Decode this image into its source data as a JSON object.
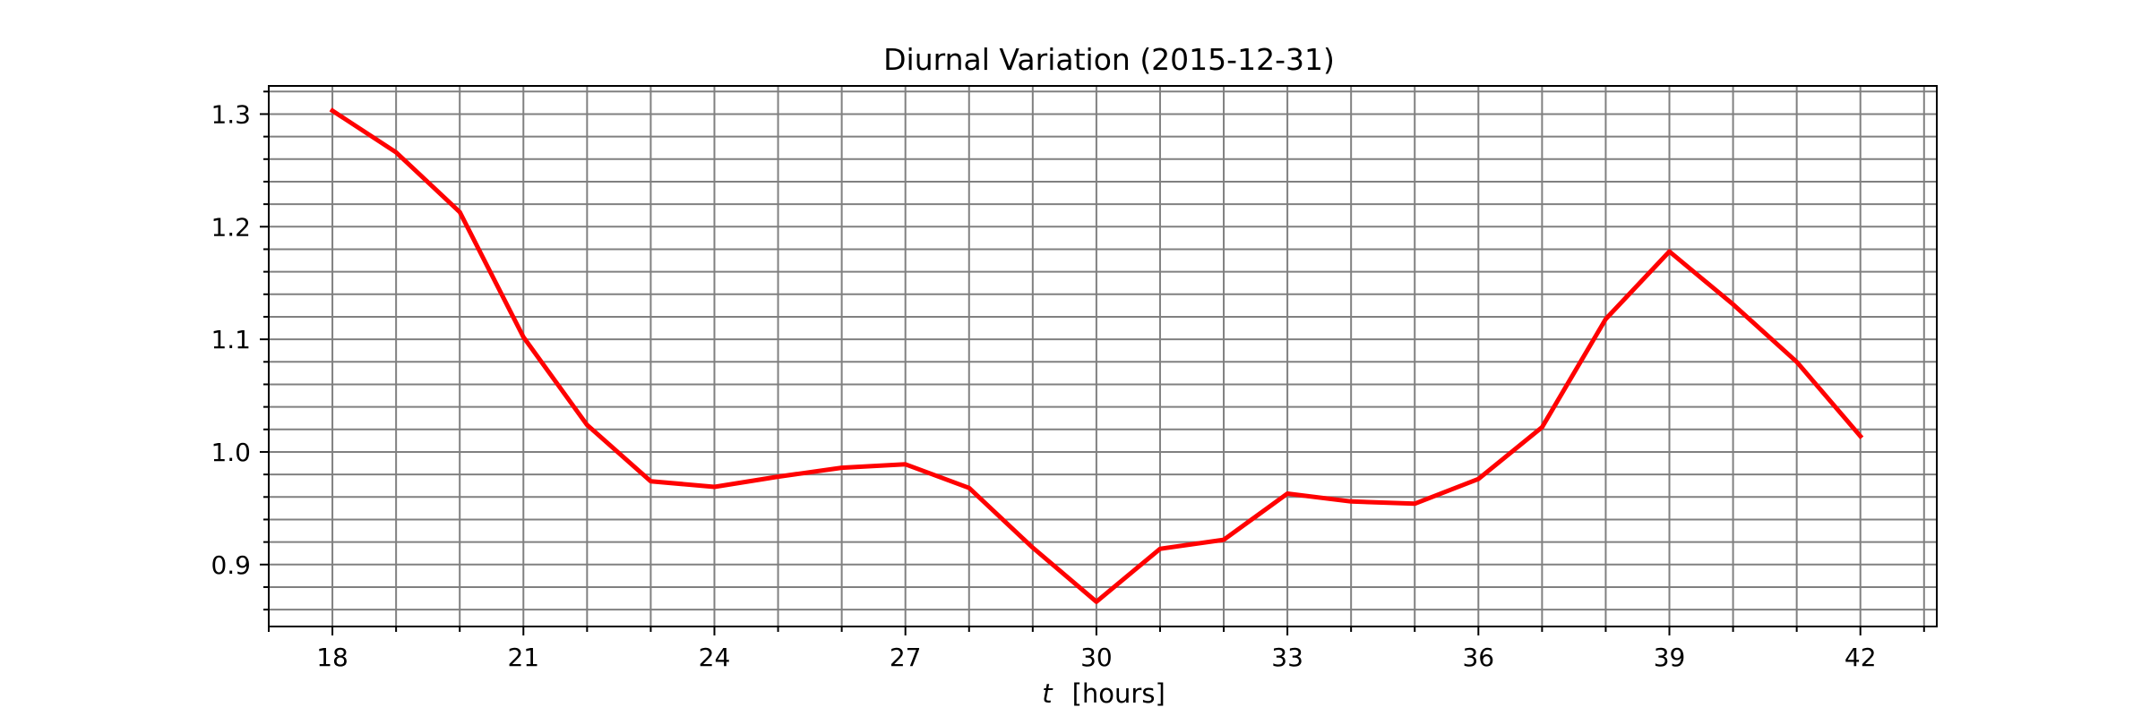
{
  "chart_data": {
    "type": "line",
    "title": "Diurnal Variation (2015-12-31)",
    "xlabel_var": "t",
    "xlabel_unit": "[hours]",
    "ylabel": "",
    "xlim": [
      17,
      43.2
    ],
    "ylim": [
      0.845,
      1.325
    ],
    "xticks": [
      18,
      21,
      24,
      27,
      30,
      33,
      36,
      39,
      42
    ],
    "yticks": [
      0.9,
      1.0,
      1.1,
      1.2,
      1.3
    ],
    "xtick_labels": [
      "18",
      "21",
      "24",
      "27",
      "30",
      "33",
      "36",
      "39",
      "42"
    ],
    "ytick_labels": [
      "0.9",
      "1.0",
      "1.1",
      "1.2",
      "1.3"
    ],
    "grid": true,
    "grid_minor": true,
    "legend": "none",
    "series": [
      {
        "color": "#ff0000",
        "x": [
          18,
          19,
          20,
          21,
          22,
          23,
          24,
          25,
          26,
          27,
          28,
          29,
          30,
          31,
          32,
          33,
          34,
          35,
          36,
          37,
          38,
          39,
          40,
          41,
          42
        ],
        "values": [
          1.303,
          1.266,
          1.213,
          1.102,
          1.024,
          0.974,
          0.969,
          0.978,
          0.986,
          0.989,
          0.968,
          0.915,
          0.867,
          0.914,
          0.922,
          0.963,
          0.956,
          0.954,
          0.976,
          1.022,
          1.118,
          1.178,
          1.131,
          1.08,
          1.014
        ]
      }
    ]
  }
}
